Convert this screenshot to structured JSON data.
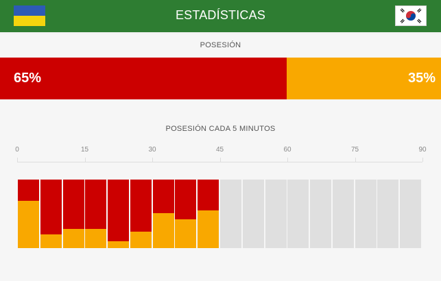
{
  "header": {
    "title": "ESTADÍSTICAS",
    "home_flag": "ukraine-flag-icon",
    "away_flag": "south-korea-flag-icon"
  },
  "possession": {
    "label": "POSESIÓN",
    "home_pct": 65,
    "away_pct": 35,
    "home_label": "65%",
    "away_label": "35%"
  },
  "colors": {
    "header_bg": "#2e7d32",
    "home": "#cc0000",
    "away": "#f9a800",
    "empty": "#dfdfdf"
  },
  "chart_data": {
    "type": "bar",
    "title": "POSESIÓN CADA 5 MINUTOS",
    "x_ticks": [
      "0",
      "15",
      "30",
      "45",
      "60",
      "75",
      "90"
    ],
    "xlim": [
      0,
      90
    ],
    "interval_minutes": 5,
    "series": [
      {
        "name": "home",
        "values": [
          31,
          80,
          72,
          72,
          90,
          76,
          49,
          58,
          45
        ]
      },
      {
        "name": "away",
        "values": [
          69,
          20,
          28,
          28,
          10,
          24,
          51,
          42,
          55
        ]
      }
    ],
    "played_intervals": 9,
    "total_intervals": 18
  }
}
